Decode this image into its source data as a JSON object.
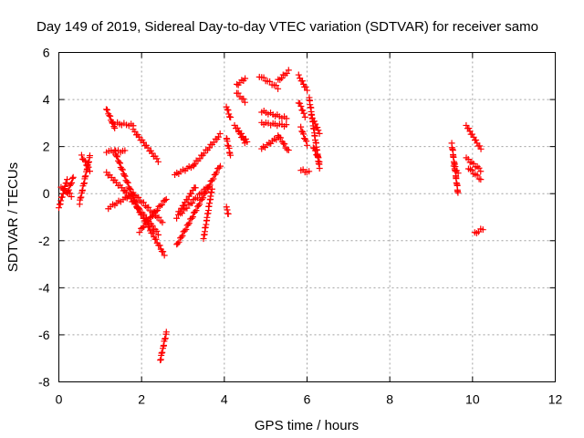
{
  "chart_data": {
    "type": "scatter",
    "title": "Day 149 of 2019, Sidereal Day-to-day VTEC variation (SDTVAR) for receiver samo",
    "xlabel": "GPS time / hours",
    "ylabel": "SDTVAR / TECUs",
    "xlim": [
      0,
      12
    ],
    "ylim": [
      -8,
      6
    ],
    "xticks": [
      "0",
      "2",
      "4",
      "6",
      "8",
      "10",
      "12"
    ],
    "yticks": [
      "-8",
      "-6",
      "-4",
      "-2",
      "0",
      "2",
      "4",
      "6"
    ],
    "grid": true,
    "marker": "+",
    "color": "#ff0000",
    "segments": [
      {
        "x": [
          0.0,
          0.2
        ],
        "y": [
          -0.6,
          0.6
        ]
      },
      {
        "x": [
          0.05,
          0.3
        ],
        "y": [
          0.3,
          -0.1
        ]
      },
      {
        "x": [
          0.2,
          0.35
        ],
        "y": [
          0.0,
          0.7
        ]
      },
      {
        "x": [
          0.5,
          0.75
        ],
        "y": [
          -0.4,
          1.6
        ]
      },
      {
        "x": [
          0.55,
          0.75
        ],
        "y": [
          1.6,
          1.0
        ]
      },
      {
        "x": [
          1.15,
          1.35
        ],
        "y": [
          3.6,
          2.8
        ]
      },
      {
        "x": [
          1.3,
          1.8
        ],
        "y": [
          3.0,
          2.9
        ]
      },
      {
        "x": [
          1.8,
          2.4
        ],
        "y": [
          2.7,
          1.4
        ]
      },
      {
        "x": [
          1.15,
          1.6
        ],
        "y": [
          1.8,
          1.8
        ]
      },
      {
        "x": [
          1.35,
          1.9
        ],
        "y": [
          1.8,
          -0.6
        ]
      },
      {
        "x": [
          1.9,
          2.55
        ],
        "y": [
          -0.6,
          -2.6
        ]
      },
      {
        "x": [
          1.15,
          1.6
        ],
        "y": [
          0.9,
          0.1
        ]
      },
      {
        "x": [
          1.6,
          2.4
        ],
        "y": [
          0.1,
          -1.7
        ]
      },
      {
        "x": [
          1.2,
          1.8
        ],
        "y": [
          -0.6,
          0.0
        ]
      },
      {
        "x": [
          1.8,
          2.5
        ],
        "y": [
          0.0,
          -1.2
        ]
      },
      {
        "x": [
          1.95,
          2.6
        ],
        "y": [
          -1.6,
          -0.2
        ]
      },
      {
        "x": [
          2.45,
          2.6
        ],
        "y": [
          -7.1,
          -5.9
        ]
      },
      {
        "x": [
          2.8,
          3.25
        ],
        "y": [
          0.8,
          1.2
        ]
      },
      {
        "x": [
          3.25,
          3.9
        ],
        "y": [
          1.2,
          2.5
        ]
      },
      {
        "x": [
          2.85,
          3.9
        ],
        "y": [
          -2.2,
          1.2
        ]
      },
      {
        "x": [
          2.85,
          3.6
        ],
        "y": [
          -1.0,
          0.3
        ]
      },
      {
        "x": [
          2.9,
          3.3
        ],
        "y": [
          -0.8,
          0.3
        ]
      },
      {
        "x": [
          3.5,
          3.7
        ],
        "y": [
          -1.9,
          0.2
        ]
      },
      {
        "x": [
          4.05,
          4.15
        ],
        "y": [
          3.7,
          3.2
        ]
      },
      {
        "x": [
          4.05,
          4.1
        ],
        "y": [
          -0.6,
          -0.9
        ]
      },
      {
        "x": [
          4.05,
          4.15
        ],
        "y": [
          2.4,
          1.6
        ]
      },
      {
        "x": [
          4.3,
          4.5
        ],
        "y": [
          4.6,
          4.9
        ]
      },
      {
        "x": [
          4.3,
          4.5
        ],
        "y": [
          4.3,
          3.9
        ]
      },
      {
        "x": [
          4.25,
          4.55
        ],
        "y": [
          2.9,
          2.2
        ]
      },
      {
        "x": [
          4.35,
          4.5
        ],
        "y": [
          2.6,
          2.2
        ]
      },
      {
        "x": [
          4.85,
          5.3
        ],
        "y": [
          5.0,
          4.5
        ]
      },
      {
        "x": [
          5.3,
          5.55
        ],
        "y": [
          4.8,
          5.2
        ]
      },
      {
        "x": [
          4.9,
          5.5
        ],
        "y": [
          3.5,
          3.2
        ]
      },
      {
        "x": [
          4.9,
          5.5
        ],
        "y": [
          3.0,
          2.9
        ]
      },
      {
        "x": [
          4.9,
          5.3
        ],
        "y": [
          1.9,
          2.4
        ]
      },
      {
        "x": [
          5.3,
          5.55
        ],
        "y": [
          2.5,
          1.8
        ]
      },
      {
        "x": [
          5.8,
          6.0
        ],
        "y": [
          5.0,
          4.4
        ]
      },
      {
        "x": [
          5.8,
          5.95
        ],
        "y": [
          3.9,
          3.3
        ]
      },
      {
        "x": [
          5.85,
          6.0
        ],
        "y": [
          2.8,
          2.1
        ]
      },
      {
        "x": [
          5.85,
          6.05
        ],
        "y": [
          1.0,
          0.9
        ]
      },
      {
        "x": [
          6.05,
          6.3
        ],
        "y": [
          4.1,
          1.1
        ]
      },
      {
        "x": [
          6.1,
          6.3
        ],
        "y": [
          3.3,
          2.6
        ]
      },
      {
        "x": [
          6.15,
          6.3
        ],
        "y": [
          2.0,
          1.4
        ]
      },
      {
        "x": [
          9.5,
          9.65
        ],
        "y": [
          2.1,
          0.0
        ]
      },
      {
        "x": [
          9.55,
          9.65
        ],
        "y": [
          1.2,
          0.9
        ]
      },
      {
        "x": [
          9.85,
          10.2
        ],
        "y": [
          2.9,
          1.9
        ]
      },
      {
        "x": [
          9.85,
          10.2
        ],
        "y": [
          1.5,
          1.0
        ]
      },
      {
        "x": [
          9.9,
          10.2
        ],
        "y": [
          1.1,
          0.6
        ]
      },
      {
        "x": [
          10.05,
          10.25
        ],
        "y": [
          -1.7,
          -1.5
        ]
      }
    ]
  }
}
